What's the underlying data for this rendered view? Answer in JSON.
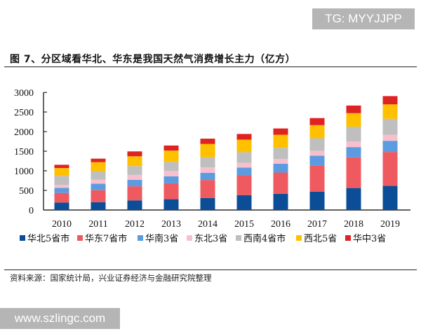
{
  "watermark_top": "TG: MYYJJPP",
  "watermark_bottom": "www.szlingc.com",
  "title": "图 7、分区域看华北、华东是我国天然气消费增长主力（亿方）",
  "source": "资料来源：国家统计局，兴业证券经济与金融研究院整理",
  "chart_data": {
    "type": "bar",
    "stacked": true,
    "title": "图 7、分区域看华北、华东是我国天然气消费增长主力（亿方）",
    "xlabel": "",
    "ylabel": "",
    "ylim": [
      0,
      3000
    ],
    "yticks": [
      0,
      500,
      1000,
      1500,
      2000,
      2500,
      3000
    ],
    "grid": false,
    "legend_position": "bottom",
    "categories": [
      "2010",
      "2011",
      "2012",
      "2013",
      "2014",
      "2015",
      "2016",
      "2017",
      "2018",
      "2019"
    ],
    "series": [
      {
        "name": "华北5省市",
        "color": "#0b4d97",
        "values": [
          190,
          200,
          245,
          275,
          305,
          380,
          415,
          465,
          560,
          615
        ]
      },
      {
        "name": "华东7省市",
        "color": "#ee5a5f",
        "values": [
          244,
          305,
          360,
          405,
          460,
          505,
          540,
          675,
          785,
          865
        ]
      },
      {
        "name": "华南3省",
        "color": "#5d9be0",
        "values": [
          131,
          165,
          165,
          180,
          185,
          195,
          225,
          245,
          260,
          285
        ]
      },
      {
        "name": "东北3省",
        "color": "#f8c0cf",
        "values": [
          78,
          100,
          125,
          140,
          135,
          120,
          120,
          125,
          140,
          155
        ]
      },
      {
        "name": "西南4省市",
        "color": "#bfbfbf",
        "values": [
          226,
          220,
          225,
          225,
          260,
          275,
          285,
          320,
          380,
          405
        ]
      },
      {
        "name": "西北5省",
        "color": "#ffc000",
        "values": [
          202,
          230,
          250,
          290,
          340,
          320,
          335,
          335,
          345,
          370
        ]
      },
      {
        "name": "华中3省",
        "color": "#df2323",
        "values": [
          83,
          90,
          125,
          130,
          135,
          145,
          160,
          180,
          195,
          210
        ]
      }
    ]
  }
}
